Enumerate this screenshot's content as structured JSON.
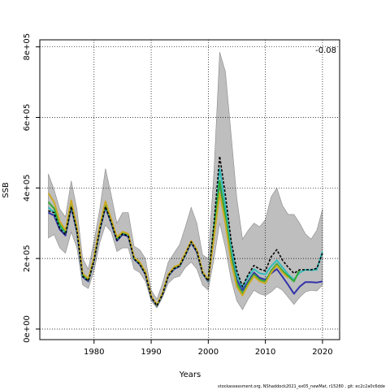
{
  "chart_data": {
    "type": "line",
    "title": "",
    "xlabel": "Years",
    "ylabel": "SSB",
    "xlim": [
      1970.5,
      2023
    ],
    "ylim": [
      -30000,
      820000
    ],
    "x_ticks": [
      1980,
      1990,
      2000,
      2010,
      2020
    ],
    "x_tick_labels": [
      "1980",
      "1990",
      "2000",
      "2010",
      "2020"
    ],
    "y_ticks": [
      0,
      200000,
      400000,
      600000,
      800000
    ],
    "y_tick_labels": [
      "0e+00",
      "2e+05",
      "4e+05",
      "6e+05",
      "8e+05"
    ],
    "grid": true,
    "annotation": "-0.08",
    "footnote": "stockassessment.org, NShaddock2021_ex05_newMat, r15280 , git: ec2c2a0c6dde",
    "confidence_band": {
      "x": [
        1972,
        1973,
        1974,
        1975,
        1976,
        1977,
        1978,
        1979,
        1980,
        1981,
        1982,
        1983,
        1984,
        1985,
        1986,
        1987,
        1988,
        1989,
        1990,
        1991,
        1992,
        1993,
        1994,
        1995,
        1996,
        1997,
        1998,
        1999,
        2000,
        2001,
        2002,
        2003,
        2004,
        2005,
        2006,
        2007,
        2008,
        2009,
        2010,
        2011,
        2012,
        2013,
        2014,
        2015,
        2016,
        2017,
        2018,
        2019,
        2020
      ],
      "lower": [
        258000,
        268000,
        230000,
        215000,
        275000,
        230000,
        125000,
        115000,
        165000,
        245000,
        295000,
        275000,
        220000,
        230000,
        230000,
        170000,
        160000,
        135000,
        80000,
        60000,
        90000,
        130000,
        145000,
        150000,
        175000,
        190000,
        170000,
        125000,
        110000,
        200000,
        300000,
        230000,
        140000,
        80000,
        55000,
        85000,
        110000,
        100000,
        95000,
        105000,
        120000,
        110000,
        90000,
        70000,
        90000,
        105000,
        110000,
        108000,
        125000
      ],
      "upper": [
        440000,
        395000,
        340000,
        318000,
        420000,
        340000,
        200000,
        170000,
        250000,
        340000,
        455000,
        380000,
        300000,
        330000,
        330000,
        235000,
        225000,
        200000,
        110000,
        85000,
        130000,
        190000,
        215000,
        240000,
        290000,
        345000,
        300000,
        210000,
        200000,
        450000,
        785000,
        730000,
        550000,
        370000,
        255000,
        280000,
        300000,
        290000,
        310000,
        375000,
        400000,
        350000,
        325000,
        325000,
        300000,
        270000,
        255000,
        280000,
        340000
      ]
    },
    "series": [
      {
        "color": "#3333AA",
        "values": [
          330000,
          322000,
          282000,
          265000,
          345000,
          275000,
          148000,
          135000,
          195000,
          280000,
          345000,
          300000,
          250000,
          268000,
          262000,
          198000,
          183000,
          155000,
          90000,
          65000,
          98000,
          150000,
          170000,
          178000,
          210000,
          245000,
          218000,
          158000,
          135000,
          280000,
          415000,
          320000,
          210000,
          140000,
          110000,
          135000,
          160000,
          145000,
          140000,
          158000,
          170000,
          148000,
          125000,
          100000,
          120000,
          133000,
          133000,
          132000,
          135000
        ]
      },
      {
        "color": "#33BBBB",
        "values": [
          345000,
          330000,
          290000,
          272000,
          352000,
          280000,
          152000,
          138000,
          198000,
          285000,
          350000,
          305000,
          255000,
          272000,
          266000,
          200000,
          186000,
          158000,
          92000,
          66000,
          100000,
          152000,
          173000,
          180000,
          212000,
          248000,
          222000,
          160000,
          137000,
          290000,
          455000,
          350000,
          230000,
          155000,
          118000,
          148000,
          170000,
          158000,
          155000,
          178000,
          195000,
          175000,
          155000,
          140000,
          160000,
          168000,
          167000,
          168000,
          220000
        ]
      },
      {
        "color": "#33AA33",
        "values": [
          360000,
          342000,
          296000,
          276000,
          356000,
          285000,
          155000,
          140000,
          200000,
          287000,
          355000,
          308000,
          257000,
          274000,
          268000,
          202000,
          188000,
          160000,
          93000,
          67000,
          101000,
          153000,
          174000,
          181000,
          213000,
          249000,
          224000,
          162000,
          138000,
          280000,
          420000,
          320000,
          205000,
          130000,
          100000,
          130000,
          155000,
          140000,
          135000,
          165000,
          185000,
          165000,
          150000,
          135000,
          168000
        ]
      },
      {
        "color": "#CCAA22",
        "values": [
          385000,
          360000,
          305000,
          280000,
          365000,
          290000,
          158000,
          143000,
          203000,
          292000,
          362000,
          312000,
          260000,
          276000,
          270000,
          203000,
          190000,
          162000,
          94000,
          68000,
          102000,
          155000,
          176000,
          183000,
          215000,
          250000,
          225000,
          163000,
          139000,
          260000,
          385000,
          300000,
          190000,
          120000,
          95000,
          125000,
          150000,
          135000,
          130000,
          160000,
          180000,
          160000,
          145000
        ]
      },
      {
        "color": "#000000",
        "dashed": true,
        "values": [
          335000,
          330000,
          285000,
          268000,
          347000,
          278000,
          150000,
          136000,
          196000,
          282000,
          347000,
          302000,
          252000,
          270000,
          264000,
          199000,
          184000,
          156000,
          91000,
          66000,
          99000,
          151000,
          172000,
          179000,
          211000,
          247000,
          220000,
          159000,
          136000,
          300000,
          490000,
          380000,
          250000,
          165000,
          120000,
          155000,
          180000,
          170000,
          165000,
          205000,
          225000,
          195000,
          175000,
          158000,
          168000,
          168000,
          168000,
          172000,
          215000
        ]
      }
    ]
  }
}
